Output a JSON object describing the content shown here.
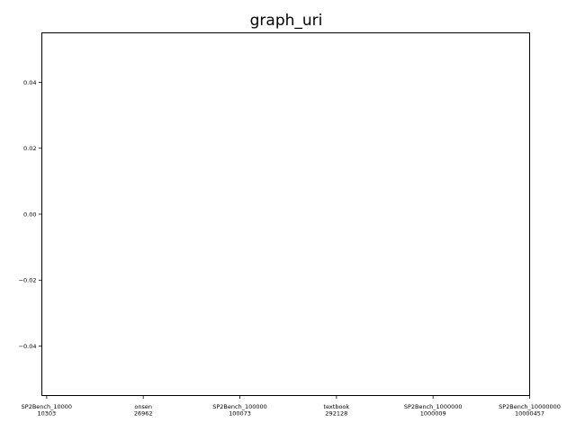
{
  "chart_data": {
    "type": "scatter",
    "title": "graph_uri",
    "xlabel": "",
    "ylabel": "",
    "categories": [
      [
        "SP2Bench_10000",
        "10303"
      ],
      [
        "onsen",
        "26962"
      ],
      [
        "SP2Bench_100000",
        "100073"
      ],
      [
        "textbook",
        "292128"
      ],
      [
        "SP2Bench_1000000",
        "1000009"
      ],
      [
        "SP2Bench_10000000",
        "10000457"
      ]
    ],
    "series": [],
    "ylim": [
      -0.055,
      0.055
    ],
    "yticks": [
      -0.04,
      -0.02,
      0.0,
      0.02,
      0.04
    ],
    "ytick_labels": [
      "−0.04",
      "−0.02",
      "0.00",
      "0.02",
      "0.04"
    ],
    "grid": false,
    "legend": "none"
  }
}
